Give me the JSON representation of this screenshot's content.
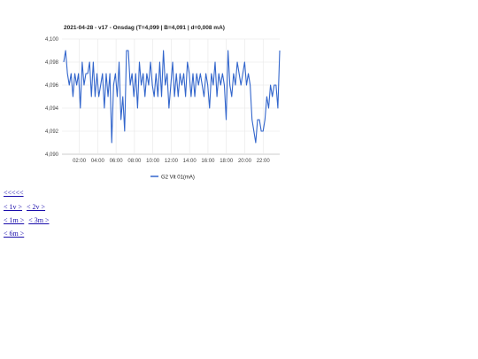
{
  "chart_data": {
    "type": "line",
    "title": "2021-04-28 - v17 - Onsdag (T=4,099 | B=4,091 | d=0,008 mA)",
    "xlabel": "",
    "ylabel": "",
    "ylim": [
      4.09,
      4.1
    ],
    "yticks": [
      "4,100",
      "4,098",
      "4,096",
      "4,094",
      "4,092",
      "4,090"
    ],
    "xticks": [
      "02:00",
      "04:00",
      "06:00",
      "08:00",
      "10:00",
      "12:00",
      "14:00",
      "16:00",
      "18:00",
      "20:00",
      "22:00"
    ],
    "grid": true,
    "legend_position": "bottom",
    "series": [
      {
        "name": "G2 Vit 01(mA)",
        "color": "#3366cc",
        "values": [
          4.098,
          4.099,
          4.097,
          4.096,
          4.097,
          4.095,
          4.097,
          4.096,
          4.097,
          4.094,
          4.098,
          4.096,
          4.097,
          4.097,
          4.098,
          4.095,
          4.098,
          4.095,
          4.097,
          4.095,
          4.096,
          4.097,
          4.094,
          4.097,
          4.095,
          4.097,
          4.091,
          4.096,
          4.097,
          4.095,
          4.098,
          4.093,
          4.095,
          4.092,
          4.099,
          4.099,
          4.096,
          4.097,
          4.095,
          4.097,
          4.094,
          4.098,
          4.096,
          4.097,
          4.095,
          4.097,
          4.096,
          4.098,
          4.096,
          4.095,
          4.097,
          4.095,
          4.098,
          4.095,
          4.099,
          4.096,
          4.097,
          4.094,
          4.096,
          4.098,
          4.095,
          4.097,
          4.095,
          4.097,
          4.096,
          4.097,
          4.095,
          4.098,
          4.097,
          4.095,
          4.097,
          4.095,
          4.097,
          4.096,
          4.097,
          4.096,
          4.095,
          4.097,
          4.096,
          4.094,
          4.097,
          4.096,
          4.098,
          4.095,
          4.097,
          4.096,
          4.097,
          4.096,
          4.093,
          4.099,
          4.096,
          4.095,
          4.097,
          4.096,
          4.098,
          4.097,
          4.096,
          4.097,
          4.098,
          4.096,
          4.097,
          4.096,
          4.093,
          4.092,
          4.091,
          4.093,
          4.093,
          4.092,
          4.092,
          4.093,
          4.095,
          4.094,
          4.096,
          4.095,
          4.096,
          4.096,
          4.094,
          4.099
        ]
      }
    ]
  },
  "nav": {
    "row1": [
      "<<<<<"
    ],
    "row2": [
      "< 1v >",
      "< 2v >"
    ],
    "row3": [
      "< 1m >",
      "< 3m >"
    ],
    "row4": [
      "< 6m >"
    ]
  }
}
